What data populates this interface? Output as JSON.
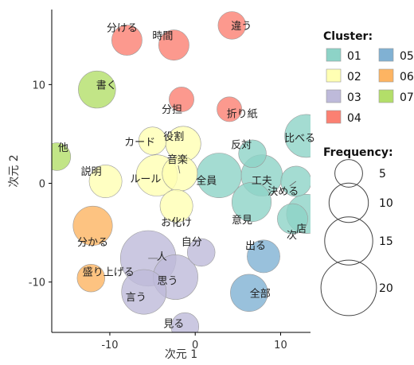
{
  "chart_data": {
    "type": "scatter",
    "title": "",
    "xlabel": "次元 1",
    "ylabel": "次元 2",
    "xlim": [
      -16.8,
      13.5
    ],
    "ylim": [
      -15.1,
      17.6
    ],
    "xticks": [
      -10,
      0,
      10
    ],
    "yticks": [
      -10,
      0,
      10
    ],
    "grid": false,
    "legend": {
      "placement": "right",
      "color_title": "Cluster:",
      "size_title": "Frequency:",
      "clusters": [
        {
          "id": "01",
          "color": "#8DD3C7"
        },
        {
          "id": "05",
          "color": "#80B1D3"
        },
        {
          "id": "02",
          "color": "#FFFFB3"
        },
        {
          "id": "06",
          "color": "#FDB462"
        },
        {
          "id": "03",
          "color": "#BEBADA"
        },
        {
          "id": "07",
          "color": "#B3DE69"
        },
        {
          "id": "04",
          "color": "#FB8072"
        }
      ],
      "sizes": [
        5,
        10,
        15,
        20
      ]
    },
    "points": [
      {
        "label": "違う",
        "x": 4.3,
        "y": 16.0,
        "freq": 5,
        "cluster": "04"
      },
      {
        "label": "分ける",
        "x": -8.0,
        "y": 14.5,
        "freq": 6,
        "cluster": "04"
      },
      {
        "label": "時間",
        "x": -2.5,
        "y": 14.0,
        "freq": 6,
        "cluster": "04"
      },
      {
        "label": "分担",
        "x": -1.6,
        "y": 8.5,
        "freq": 4,
        "cluster": "04"
      },
      {
        "label": "折り紙",
        "x": 4.0,
        "y": 7.5,
        "freq": 4,
        "cluster": "04"
      },
      {
        "label": "書く",
        "x": -11.5,
        "y": 9.5,
        "freq": 9,
        "cluster": "07"
      },
      {
        "label": "他",
        "x": -16.2,
        "y": 2.7,
        "freq": 5,
        "cluster": "07"
      },
      {
        "label": "比べる",
        "x": 13.0,
        "y": 4.8,
        "freq": 12,
        "cluster": "01"
      },
      {
        "label": "反対",
        "x": 6.7,
        "y": 3.0,
        "freq": 5,
        "cluster": "01"
      },
      {
        "label": "工夫",
        "x": 7.8,
        "y": 0.8,
        "freq": 11,
        "cluster": "01"
      },
      {
        "label": "全員",
        "x": 2.8,
        "y": 0.8,
        "freq": 13,
        "cluster": "01"
      },
      {
        "label": "決める",
        "x": 11.8,
        "y": 0.2,
        "freq": 6,
        "cluster": "01"
      },
      {
        "label": "意見",
        "x": 6.6,
        "y": -1.9,
        "freq": 10,
        "cluster": "01"
      },
      {
        "label": "店",
        "x": 13.0,
        "y": -3.1,
        "freq": 10,
        "cluster": "01"
      },
      {
        "label": "次",
        "x": 11.4,
        "y": -3.6,
        "freq": 6,
        "cluster": "01"
      },
      {
        "label": "カード",
        "x": -5.0,
        "y": 4.3,
        "freq": 5,
        "cluster": "02"
      },
      {
        "label": "役割",
        "x": -1.4,
        "y": 4.0,
        "freq": 8,
        "cluster": "02"
      },
      {
        "label": "音楽",
        "x": -1.8,
        "y": 1.0,
        "freq": 8,
        "cluster": "02"
      },
      {
        "label": "ルール",
        "x": -4.5,
        "y": 0.8,
        "freq": 11,
        "cluster": "02"
      },
      {
        "label": "説明",
        "x": -10.5,
        "y": 0.2,
        "freq": 7,
        "cluster": "02"
      },
      {
        "label": "お化け",
        "x": -2.2,
        "y": -2.3,
        "freq": 7,
        "cluster": "02"
      },
      {
        "label": "分かる",
        "x": -12.0,
        "y": -4.3,
        "freq": 10,
        "cluster": "06"
      },
      {
        "label": "盛り上げる",
        "x": -12.2,
        "y": -9.6,
        "freq": 5,
        "cluster": "06"
      },
      {
        "label": "自分",
        "x": 0.7,
        "y": -7.0,
        "freq": 5,
        "cluster": "03"
      },
      {
        "label": "人",
        "x": -5.5,
        "y": -7.6,
        "freq": 20,
        "cluster": "03"
      },
      {
        "label": "思う",
        "x": -2.3,
        "y": -9.5,
        "freq": 13,
        "cluster": "03"
      },
      {
        "label": "言う",
        "x": -6.0,
        "y": -11.0,
        "freq": 13,
        "cluster": "03"
      },
      {
        "label": "見る",
        "x": -1.2,
        "y": -14.5,
        "freq": 5,
        "cluster": "03"
      },
      {
        "label": "出る",
        "x": 8.0,
        "y": -7.4,
        "freq": 7,
        "cluster": "05"
      },
      {
        "label": "全部",
        "x": 6.3,
        "y": -11.1,
        "freq": 9,
        "cluster": "05"
      }
    ]
  }
}
